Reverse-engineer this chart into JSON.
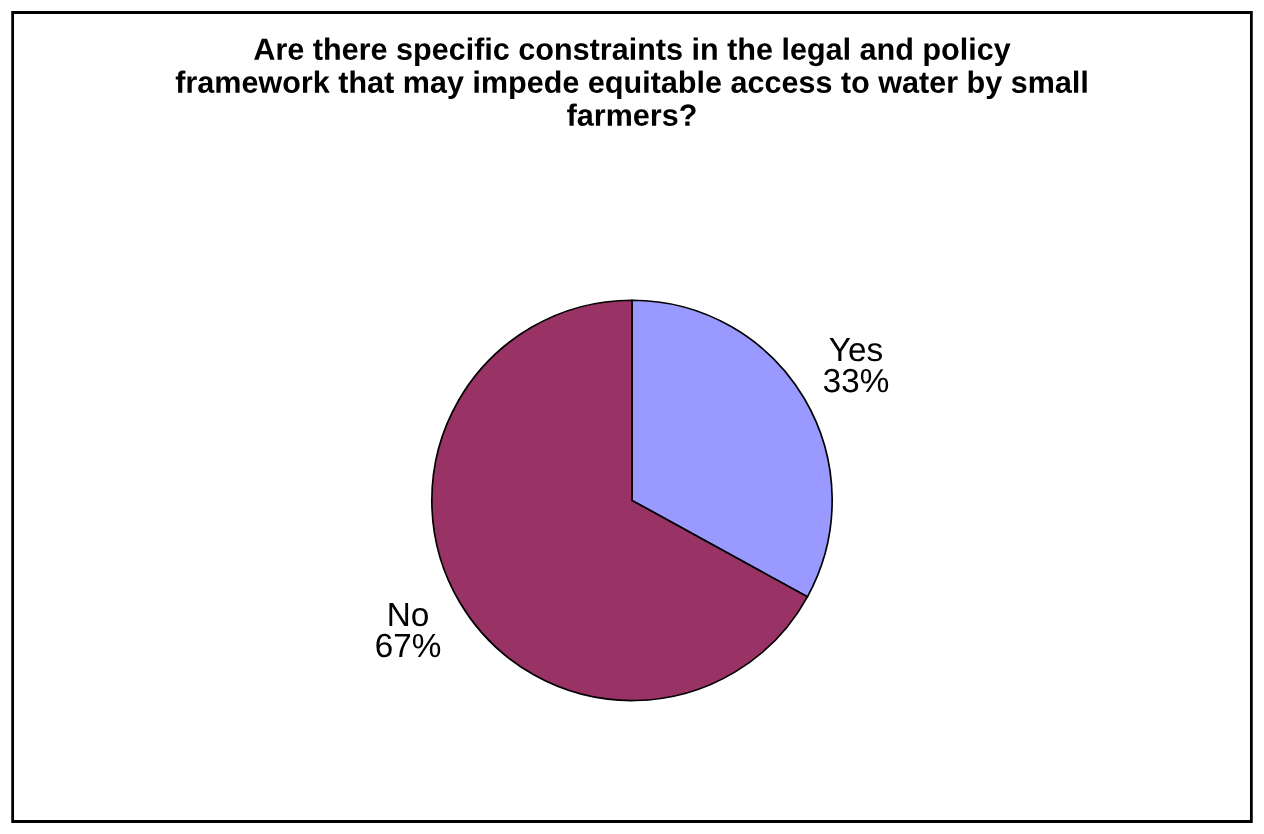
{
  "chart_data": {
    "type": "pie",
    "title": "Are there specific constraints in the legal and policy framework that may impede equitable access to water by small farmers?",
    "categories": [
      "Yes",
      "No"
    ],
    "values": [
      33,
      67
    ],
    "colors": [
      "#9999ff",
      "#993366"
    ],
    "value_labels": [
      "33%",
      "67%"
    ],
    "legend": false
  }
}
